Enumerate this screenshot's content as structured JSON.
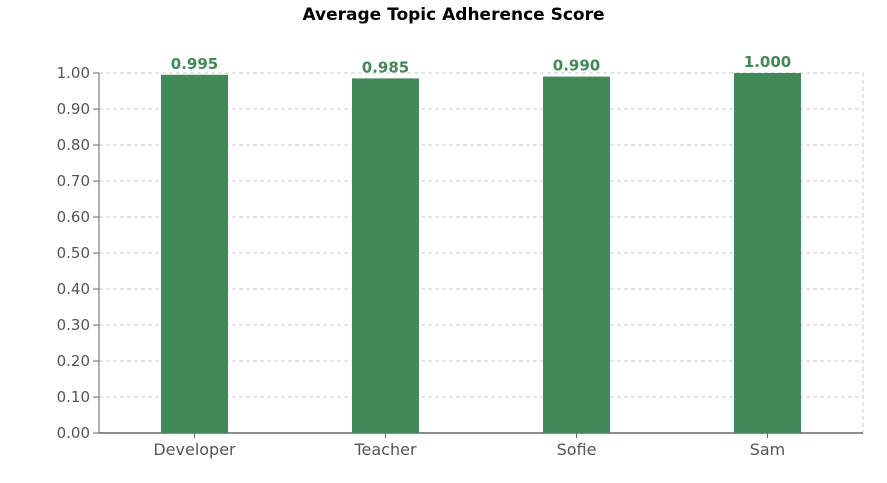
{
  "chart_data": {
    "type": "bar",
    "title": "Average Topic Adherence Score",
    "xlabel": "",
    "ylabel": "",
    "categories": [
      "Developer",
      "Teacher",
      "Sofie",
      "Sam"
    ],
    "values": [
      0.995,
      0.985,
      0.99,
      1.0
    ],
    "value_labels": [
      "0.995",
      "0.985",
      "0.990",
      "1.000"
    ],
    "ylim": [
      0,
      1.0
    ],
    "yticks": [
      "0.00",
      "0.10",
      "0.20",
      "0.30",
      "0.40",
      "0.50",
      "0.60",
      "0.70",
      "0.80",
      "0.90",
      "1.00"
    ],
    "grid": true,
    "bar_color": "#418958",
    "label_color": "#418958"
  }
}
